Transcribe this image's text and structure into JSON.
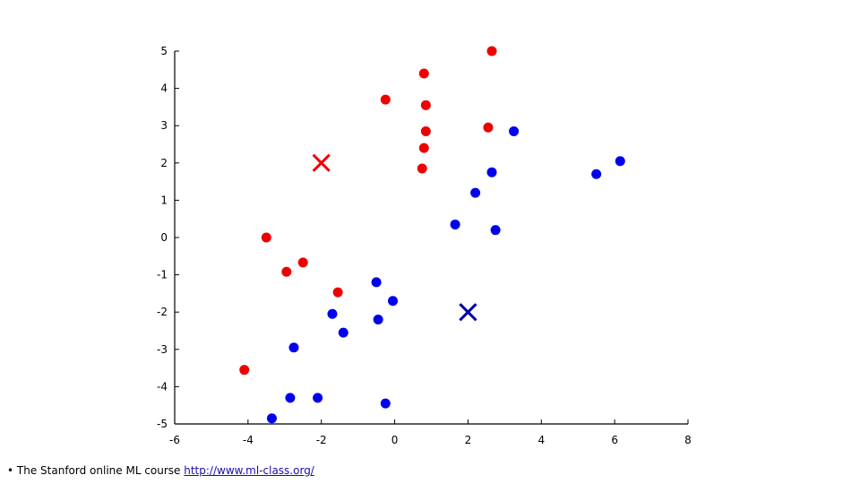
{
  "chart_data": {
    "type": "scatter",
    "xlim": [
      -6,
      8
    ],
    "ylim": [
      -5,
      5
    ],
    "xticks": [
      -6,
      -4,
      -2,
      0,
      2,
      4,
      6,
      8
    ],
    "yticks": [
      -5,
      -4,
      -3,
      -2,
      -1,
      0,
      1,
      2,
      3,
      4,
      5
    ],
    "grid": false,
    "series": [
      {
        "color": "#ee0000",
        "marker": "circle",
        "points": [
          [
            2.65,
            5.0
          ],
          [
            0.8,
            4.4
          ],
          [
            -0.25,
            3.7
          ],
          [
            0.85,
            3.55
          ],
          [
            2.55,
            2.95
          ],
          [
            0.85,
            2.85
          ],
          [
            0.8,
            2.4
          ],
          [
            0.75,
            1.85
          ],
          [
            -3.5,
            0.0
          ],
          [
            -2.5,
            -0.67
          ],
          [
            -2.95,
            -0.92
          ],
          [
            -1.55,
            -1.47
          ],
          [
            -4.1,
            -3.55
          ]
        ]
      },
      {
        "color": "#0000ee",
        "marker": "circle",
        "points": [
          [
            3.25,
            2.85
          ],
          [
            6.15,
            2.05
          ],
          [
            5.5,
            1.7
          ],
          [
            2.65,
            1.75
          ],
          [
            2.2,
            1.2
          ],
          [
            1.65,
            0.35
          ],
          [
            2.75,
            0.2
          ],
          [
            -0.5,
            -1.2
          ],
          [
            -0.05,
            -1.7
          ],
          [
            -1.7,
            -2.05
          ],
          [
            -0.45,
            -2.2
          ],
          [
            -1.4,
            -2.55
          ],
          [
            -2.75,
            -2.95
          ],
          [
            -2.85,
            -4.3
          ],
          [
            -2.1,
            -4.3
          ],
          [
            -0.25,
            -4.45
          ],
          [
            -3.35,
            -4.85
          ]
        ]
      }
    ],
    "centroids": [
      {
        "color": "#ee0000",
        "marker": "x",
        "x": -2,
        "y": 2
      },
      {
        "color": "#0000aa",
        "marker": "x",
        "x": 2,
        "y": -2
      }
    ]
  },
  "footer": {
    "bullet": "•",
    "text": "The Stanford online ML course ",
    "link_text": "http://www.ml-class.org/"
  }
}
